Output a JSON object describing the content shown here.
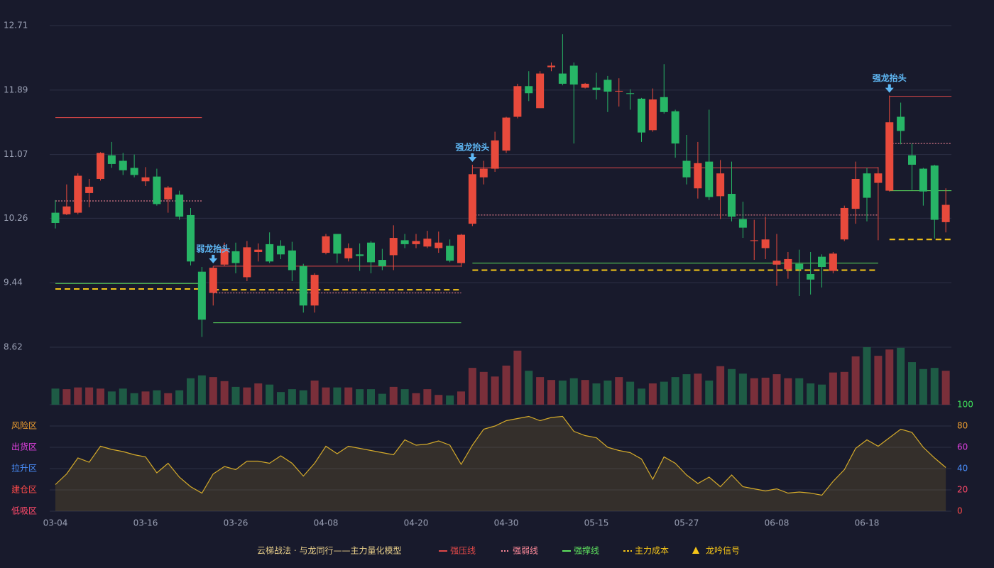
{
  "chart_data": [
    {
      "type": "candlestick",
      "legend_title": "云梯战法 · 与龙同行——主力量化模型",
      "categories": [
        "03-04",
        null,
        null,
        null,
        null,
        null,
        null,
        null,
        "03-16",
        null,
        null,
        null,
        null,
        null,
        null,
        null,
        "03-26",
        null,
        null,
        null,
        null,
        null,
        null,
        null,
        "04-08",
        null,
        null,
        null,
        null,
        null,
        null,
        null,
        "04-20",
        null,
        null,
        null,
        null,
        null,
        null,
        null,
        "04-30",
        null,
        null,
        null,
        null,
        null,
        null,
        null,
        "05-15",
        null,
        null,
        null,
        null,
        null,
        null,
        null,
        "05-27",
        null,
        null,
        null,
        null,
        null,
        null,
        null,
        "06-08",
        null,
        null,
        null,
        null,
        null,
        null,
        null,
        "06-18",
        null,
        null,
        null,
        null,
        null,
        null,
        null
      ],
      "open": [
        10.33,
        10.31,
        10.33,
        10.58,
        10.76,
        11.06,
        10.99,
        10.9,
        10.73,
        10.79,
        10.5,
        10.56,
        10.3,
        9.58,
        9.31,
        9.67,
        9.84,
        9.51,
        9.83,
        9.93,
        9.91,
        9.85,
        9.65,
        9.15,
        9.82,
        10.06,
        9.75,
        9.8,
        9.95,
        9.73,
        9.79,
        9.98,
        9.93,
        9.9,
        9.88,
        9.91,
        9.69,
        10.19,
        10.78,
        10.89,
        11.12,
        11.55,
        11.94,
        11.66,
        12.18,
        12.1,
        12.2,
        11.92,
        11.92,
        12.02,
        11.87,
        11.85,
        11.78,
        11.38,
        11.8,
        11.62,
        10.99,
        10.64,
        10.98,
        10.54,
        10.57,
        10.25,
        9.97,
        9.88,
        9.67,
        9.61,
        9.68,
        9.55,
        9.77,
        9.59,
        9.99,
        10.38,
        10.83,
        10.71,
        10.61,
        11.55,
        11.06,
        10.89,
        10.93,
        10.21
      ],
      "high": [
        10.49,
        10.69,
        10.83,
        10.76,
        11.1,
        11.23,
        11.09,
        11.07,
        10.91,
        10.89,
        10.67,
        10.61,
        10.39,
        9.64,
        9.65,
        9.95,
        9.95,
        9.97,
        9.94,
        10.08,
        9.98,
        9.96,
        9.68,
        9.56,
        10.06,
        10.06,
        9.94,
        9.94,
        9.97,
        9.87,
        10.17,
        10.06,
        10.06,
        10.1,
        10.09,
        9.99,
        10.06,
        10.94,
        10.99,
        11.36,
        11.55,
        11.97,
        12.13,
        12.13,
        12.24,
        12.6,
        12.24,
        11.98,
        12.11,
        12.07,
        12.04,
        11.9,
        11.79,
        11.91,
        12.22,
        11.64,
        11.32,
        11.23,
        11.64,
        11.0,
        10.98,
        10.47,
        10.24,
        10.28,
        10.06,
        9.83,
        9.86,
        9.83,
        9.8,
        9.83,
        10.42,
        10.98,
        10.9,
        10.91,
        11.82,
        11.73,
        11.21,
        10.9,
        10.94,
        10.64
      ],
      "low": [
        10.13,
        10.3,
        10.31,
        10.4,
        10.74,
        10.9,
        10.81,
        10.78,
        10.67,
        10.42,
        10.33,
        10.24,
        9.66,
        8.75,
        9.15,
        9.65,
        9.56,
        9.46,
        9.71,
        9.69,
        9.74,
        9.46,
        9.06,
        9.06,
        9.8,
        9.69,
        9.71,
        9.59,
        9.56,
        9.6,
        9.6,
        9.88,
        9.88,
        9.88,
        9.82,
        9.7,
        9.64,
        10.16,
        10.69,
        10.85,
        11.09,
        11.53,
        11.75,
        11.66,
        12.13,
        11.95,
        11.21,
        11.91,
        11.77,
        11.61,
        11.68,
        11.64,
        11.23,
        11.36,
        11.59,
        11.03,
        10.69,
        10.51,
        10.49,
        10.25,
        10.22,
        10.01,
        9.73,
        9.74,
        9.4,
        9.49,
        9.27,
        9.29,
        9.38,
        9.56,
        9.97,
        10.19,
        10.22,
        9.98,
        10.6,
        11.2,
        10.62,
        10.42,
        10.0,
        10.08
      ],
      "close": [
        10.2,
        10.41,
        10.8,
        10.66,
        11.09,
        10.95,
        10.87,
        10.81,
        10.78,
        10.44,
        10.65,
        10.28,
        9.71,
        8.97,
        9.63,
        9.87,
        9.69,
        9.89,
        9.86,
        9.71,
        9.8,
        9.6,
        9.15,
        9.54,
        10.03,
        9.81,
        9.88,
        9.78,
        9.7,
        9.65,
        10.01,
        9.93,
        9.97,
        10.0,
        9.95,
        9.72,
        10.05,
        10.82,
        10.89,
        11.25,
        11.54,
        11.94,
        11.85,
        12.1,
        12.2,
        11.97,
        11.96,
        11.97,
        11.89,
        11.87,
        11.88,
        11.84,
        11.35,
        11.77,
        11.61,
        11.21,
        10.78,
        10.96,
        10.53,
        10.83,
        10.28,
        10.14,
        9.98,
        9.99,
        9.72,
        9.74,
        9.61,
        9.48,
        9.64,
        9.81,
        10.39,
        10.76,
        10.52,
        10.83,
        11.48,
        11.37,
        10.94,
        10.6,
        10.24,
        10.43
      ],
      "up_color": "#e84a3c",
      "down_color": "#27b566",
      "ylim": [
        8.62,
        12.71
      ],
      "yticks": [
        8.62,
        9.44,
        10.26,
        11.07,
        11.89,
        12.71
      ],
      "grid": true,
      "levels": [
        {
          "name": "强压线",
          "color": "#e04848",
          "style": "solid",
          "segments": [
            {
              "from": 0,
              "to": 13,
              "value": 11.54
            },
            {
              "from": 14,
              "to": 36,
              "value": 9.65
            },
            {
              "from": 37,
              "to": 73,
              "value": 10.9
            },
            {
              "from": 74,
              "to": 79,
              "value": 11.81
            }
          ]
        },
        {
          "name": "强弱线",
          "color": "#ff8a9a",
          "style": "dotted",
          "segments": [
            {
              "from": 0,
              "to": 13,
              "value": 10.48
            },
            {
              "from": 14,
              "to": 36,
              "value": 9.31
            },
            {
              "from": 37,
              "to": 73,
              "value": 10.3
            },
            {
              "from": 74,
              "to": 79,
              "value": 11.21
            }
          ]
        },
        {
          "name": "强撑线",
          "color": "#5ee35e",
          "style": "solid",
          "segments": [
            {
              "from": 0,
              "to": 13,
              "value": 9.43
            },
            {
              "from": 14,
              "to": 36,
              "value": 8.93
            },
            {
              "from": 37,
              "to": 73,
              "value": 9.69
            },
            {
              "from": 74,
              "to": 79,
              "value": 10.61
            }
          ]
        },
        {
          "name": "主力成本",
          "color": "#f5c518",
          "style": "dashed",
          "segments": [
            {
              "from": 0,
              "to": 13,
              "value": 9.36
            },
            {
              "from": 14,
              "to": 36,
              "value": 9.35
            },
            {
              "from": 37,
              "to": 73,
              "value": 9.6
            },
            {
              "from": 74,
              "to": 79,
              "value": 9.99
            }
          ]
        }
      ],
      "signal": {
        "name": "龙吟信号",
        "color": "#f5c518"
      },
      "annotations": [
        {
          "index": 14,
          "text": "弱龙抬头"
        },
        {
          "index": 37,
          "text": "强龙抬头"
        },
        {
          "index": 74,
          "text": "强龙抬头"
        }
      ],
      "annotation_color": "#5fb8f5"
    },
    {
      "type": "bar",
      "values": [
        28,
        27,
        30,
        30,
        28,
        23,
        28,
        20,
        23,
        25,
        20,
        25,
        46,
        51,
        48,
        41,
        31,
        30,
        37,
        35,
        22,
        27,
        25,
        42,
        30,
        30,
        30,
        27,
        27,
        19,
        31,
        27,
        20,
        27,
        17,
        16,
        23,
        64,
        57,
        49,
        68,
        94,
        59,
        48,
        43,
        42,
        46,
        43,
        37,
        42,
        48,
        40,
        28,
        37,
        40,
        48,
        53,
        54,
        42,
        67,
        62,
        54,
        46,
        47,
        53,
        46,
        46,
        37,
        35,
        56,
        57,
        84,
        100,
        85,
        96,
        99,
        74,
        62,
        64,
        59
      ],
      "ylim": [
        0,
        100
      ],
      "up_color": "#7a2f3a",
      "down_color": "#1e5b45"
    },
    {
      "type": "area",
      "values": [
        25,
        35,
        50,
        46,
        61,
        58,
        56,
        53,
        51,
        36,
        45,
        32,
        23,
        17,
        35,
        42,
        39,
        47,
        47,
        45,
        52,
        45,
        33,
        45,
        61,
        54,
        61,
        59,
        57,
        55,
        53,
        67,
        62,
        63,
        66,
        62,
        44,
        62,
        77,
        80,
        85,
        87,
        89,
        85,
        88,
        89,
        75,
        71,
        69,
        60,
        57,
        55,
        49,
        30,
        51,
        45,
        34,
        26,
        32,
        23,
        34,
        23,
        21,
        19,
        21,
        17,
        18,
        17,
        15,
        28,
        39,
        59,
        67,
        61,
        69,
        77,
        74,
        60,
        50,
        41
      ],
      "color": "#d4aa2a",
      "ylim": [
        0,
        100
      ],
      "yticks": [
        {
          "value": 80,
          "label": "风险区"
        },
        {
          "value": 60,
          "label": "出货区"
        },
        {
          "value": 40,
          "label": "拉升区"
        },
        {
          "value": 20,
          "label": "建仓区"
        },
        {
          "value": 0,
          "label": "低吸区"
        }
      ],
      "ytick_colors": [
        "#f0a030",
        "#e040e0",
        "#4a90ff",
        "#ff4a4a",
        "#ff4a6a"
      ],
      "y2lim": [
        0,
        100
      ],
      "y2ticks": [
        0,
        20,
        40,
        60,
        80,
        100
      ],
      "y2tick_colors": [
        "#ff4a4a",
        "#ff4a6a",
        "#4a90ff",
        "#e040e0",
        "#f0a030",
        "#3ee05a"
      ],
      "grid": true
    }
  ]
}
